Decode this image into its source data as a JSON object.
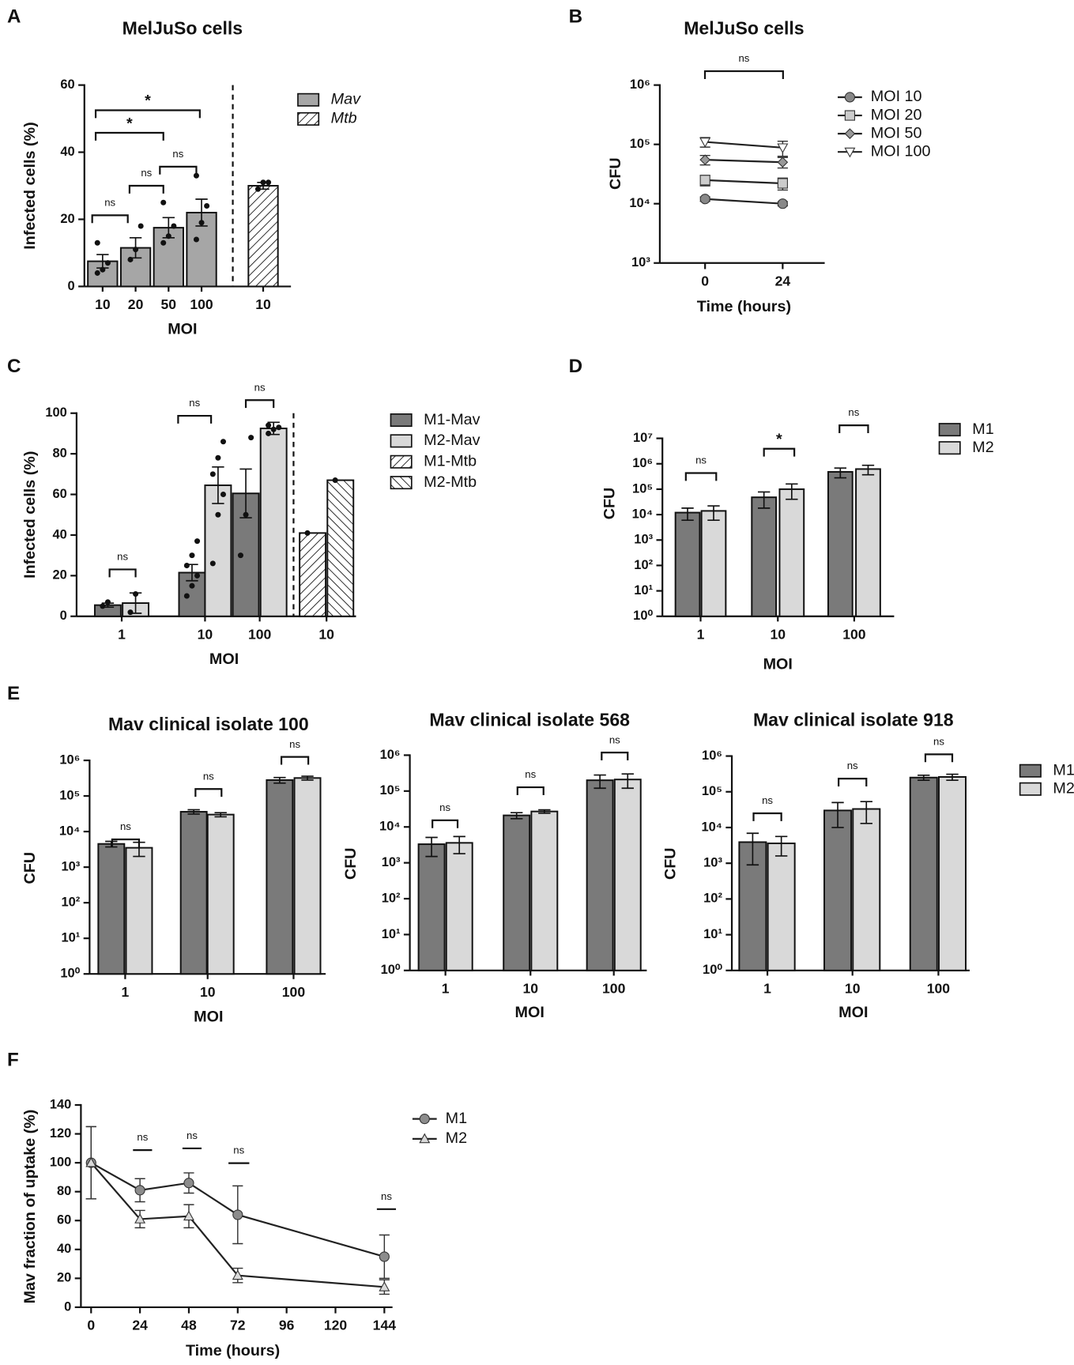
{
  "chart_data": [
    {
      "type": "bar",
      "panel": "A",
      "title": "MelJuSo cells",
      "ylabel": "Infected cells (%)",
      "xlabel": "MOI",
      "categories": [
        "10",
        "20",
        "50",
        "100",
        "10"
      ],
      "series": [
        {
          "name": "Mav",
          "color": "#a6a6a6",
          "values": [
            7.5,
            11.5,
            17.5,
            22,
            null
          ],
          "errors": [
            2,
            3,
            3,
            4,
            null
          ],
          "points": [
            [
              4,
              5,
              7,
              13
            ],
            [
              8,
              11,
              18
            ],
            [
              13,
              15,
              18,
              25
            ],
            [
              14,
              19,
              24,
              33
            ],
            null
          ]
        },
        {
          "name": "Mtb",
          "color": "#ffffff",
          "pattern": "hatch-right",
          "values": [
            null,
            null,
            null,
            null,
            30
          ],
          "errors": [
            null,
            null,
            null,
            null,
            1
          ],
          "points": [
            null,
            null,
            null,
            null,
            [
              29,
              31,
              31
            ]
          ]
        }
      ],
      "ylim": [
        0,
        60
      ],
      "yticks": [
        0,
        20,
        40,
        60
      ],
      "log": false,
      "legend": true,
      "annotations": [
        "ns",
        "ns",
        "ns",
        "*",
        "*"
      ]
    },
    {
      "type": "line",
      "panel": "B",
      "title": "MelJuSo cells",
      "ylabel": "CFU",
      "xlabel": "Time (hours)",
      "x": [
        0,
        24
      ],
      "xlim": [
        -14,
        37
      ],
      "xticks": [
        0,
        24
      ],
      "series": [
        {
          "name": "MOI 10",
          "color": "#888888",
          "marker": "circle",
          "values": [
            12000,
            10000
          ],
          "errors": [
            1000,
            800
          ]
        },
        {
          "name": "MOI 20",
          "color": "#cccccc",
          "marker": "square",
          "values": [
            25000,
            22000
          ],
          "errors": [
            5000,
            5000
          ]
        },
        {
          "name": "MOI 50",
          "color": "#999999",
          "marker": "diamond",
          "values": [
            55000,
            50000
          ],
          "errors": [
            10000,
            10000
          ]
        },
        {
          "name": "MOI 100",
          "color": "#ffffff",
          "marker": "triangle-down",
          "values": [
            110000,
            88000
          ],
          "errors": [
            20000,
            25000
          ]
        }
      ],
      "ylim": [
        1000,
        1000000
      ],
      "yticks": [
        {
          "value": 1000,
          "label": "10³"
        },
        {
          "value": 10000,
          "label": "10⁴"
        },
        {
          "value": 100000,
          "label": "10⁵"
        },
        {
          "value": 1000000,
          "label": "10⁶"
        }
      ],
      "log": true,
      "legend": true,
      "annotations": [
        "ns"
      ]
    },
    {
      "type": "bar",
      "panel": "C",
      "ylabel": "Infected cells (%)",
      "xlabel": "MOI",
      "categories": [
        "1",
        "10",
        "100",
        "10"
      ],
      "series": [
        {
          "name": "M1-Mav",
          "color": "#7a7a7a",
          "values": [
            5.5,
            21.5,
            60.5,
            null
          ],
          "errors": [
            1,
            4,
            12,
            null
          ],
          "points": [
            [
              5,
              7
            ],
            [
              10,
              15,
              20,
              25,
              30,
              37
            ],
            [
              30,
              50,
              88
            ],
            null
          ]
        },
        {
          "name": "M2-Mav",
          "color": "#d9d9d9",
          "values": [
            6.5,
            64.5,
            92.5,
            null
          ],
          "errors": [
            5,
            9,
            3,
            null
          ],
          "points": [
            [
              2,
              11
            ],
            [
              26,
              50,
              60,
              70,
              78,
              86
            ],
            [
              90,
              92,
              93,
              94
            ],
            null
          ]
        },
        {
          "name": "M1-Mtb",
          "color": "#ffffff",
          "pattern": "hatch-right",
          "values": [
            null,
            null,
            null,
            41
          ],
          "errors": [
            null,
            null,
            null,
            null
          ],
          "points": [
            null,
            null,
            null,
            [
              41
            ]
          ]
        },
        {
          "name": "M2-Mtb",
          "color": "#ffffff",
          "pattern": "hatch-left",
          "values": [
            null,
            null,
            null,
            67
          ],
          "errors": [
            null,
            null,
            null,
            null
          ],
          "points": [
            null,
            null,
            null,
            [
              67
            ]
          ]
        }
      ],
      "ylim": [
        0,
        100
      ],
      "yticks": [
        0,
        20,
        40,
        60,
        80,
        100
      ],
      "log": false,
      "legend": true,
      "annotations": [
        "ns",
        "ns",
        "ns"
      ]
    },
    {
      "type": "bar",
      "panel": "D",
      "ylabel": "CFU",
      "xlabel": "MOI",
      "categories": [
        "1",
        "10",
        "100"
      ],
      "series": [
        {
          "name": "M1",
          "color": "#7a7a7a",
          "values": [
            12000,
            48000,
            480000
          ],
          "errors": [
            6000,
            30000,
            200000
          ]
        },
        {
          "name": "M2",
          "color": "#d9d9d9",
          "values": [
            14000,
            100000,
            620000
          ],
          "errors": [
            8000,
            60000,
            250000
          ]
        }
      ],
      "ylim": [
        1,
        10000000
      ],
      "yticks": [
        {
          "value": 1,
          "label": "10⁰"
        },
        {
          "value": 10,
          "label": "10¹"
        },
        {
          "value": 100,
          "label": "10²"
        },
        {
          "value": 1000,
          "label": "10³"
        },
        {
          "value": 10000,
          "label": "10⁴"
        },
        {
          "value": 100000,
          "label": "10⁵"
        },
        {
          "value": 1000000,
          "label": "10⁶"
        },
        {
          "value": 10000000,
          "label": "10⁷"
        }
      ],
      "log": true,
      "legend": true,
      "annotations": [
        "ns",
        "*",
        "ns"
      ]
    },
    {
      "type": "bar",
      "panel": "E",
      "title": "Mav clinical isolate 100",
      "ylabel": "CFU",
      "xlabel": "MOI",
      "categories": [
        "1",
        "10",
        "100"
      ],
      "series": [
        {
          "name": "M1",
          "color": "#7a7a7a",
          "values": [
            4500,
            36000,
            280000
          ],
          "errors": [
            800,
            5000,
            50000
          ]
        },
        {
          "name": "M2",
          "color": "#d9d9d9",
          "values": [
            3500,
            30000,
            320000
          ],
          "errors": [
            1500,
            4000,
            40000
          ]
        }
      ],
      "ylim": [
        1,
        1000000
      ],
      "yticks": [
        {
          "value": 1,
          "label": "10⁰"
        },
        {
          "value": 10,
          "label": "10¹"
        },
        {
          "value": 100,
          "label": "10²"
        },
        {
          "value": 1000,
          "label": "10³"
        },
        {
          "value": 10000,
          "label": "10⁴"
        },
        {
          "value": 100000,
          "label": "10⁵"
        },
        {
          "value": 1000000,
          "label": "10⁶"
        }
      ],
      "log": true,
      "legend": false,
      "annotations": [
        "ns",
        "ns",
        "ns"
      ]
    },
    {
      "type": "bar",
      "title": "Mav clinical isolate 568",
      "ylabel": "CFU",
      "xlabel": "MOI",
      "categories": [
        "1",
        "10",
        "100"
      ],
      "series": [
        {
          "name": "M1",
          "color": "#7a7a7a",
          "values": [
            3300,
            21000,
            200000
          ],
          "errors": [
            1800,
            4000,
            80000
          ]
        },
        {
          "name": "M2",
          "color": "#d9d9d9",
          "values": [
            3600,
            27000,
            210000
          ],
          "errors": [
            1800,
            3000,
            90000
          ]
        }
      ],
      "ylim": [
        1,
        1000000
      ],
      "yticks": [
        {
          "value": 1,
          "label": "10⁰"
        },
        {
          "value": 10,
          "label": "10¹"
        },
        {
          "value": 100,
          "label": "10²"
        },
        {
          "value": 1000,
          "label": "10³"
        },
        {
          "value": 10000,
          "label": "10⁴"
        },
        {
          "value": 100000,
          "label": "10⁵"
        },
        {
          "value": 1000000,
          "label": "10⁶"
        }
      ],
      "log": true,
      "legend": false,
      "annotations": [
        "ns",
        "ns",
        "ns"
      ]
    },
    {
      "type": "bar",
      "title": "Mav clinical isolate 918",
      "ylabel": "CFU",
      "xlabel": "MOI",
      "categories": [
        "1",
        "10",
        "100"
      ],
      "series": [
        {
          "name": "M1",
          "color": "#7a7a7a",
          "values": [
            3900,
            30000,
            250000
          ],
          "errors": [
            3000,
            20000,
            40000
          ]
        },
        {
          "name": "M2",
          "color": "#d9d9d9",
          "values": [
            3600,
            33000,
            260000
          ],
          "errors": [
            2000,
            20000,
            50000
          ]
        }
      ],
      "ylim": [
        1,
        1000000
      ],
      "yticks": [
        {
          "value": 1,
          "label": "10⁰"
        },
        {
          "value": 10,
          "label": "10¹"
        },
        {
          "value": 100,
          "label": "10²"
        },
        {
          "value": 1000,
          "label": "10³"
        },
        {
          "value": 10000,
          "label": "10⁴"
        },
        {
          "value": 100000,
          "label": "10⁵"
        },
        {
          "value": 1000000,
          "label": "10⁶"
        }
      ],
      "log": true,
      "legend": true,
      "annotations": [
        "ns",
        "ns",
        "ns"
      ]
    },
    {
      "type": "line",
      "panel": "F",
      "ylabel": "Mav fraction of uptake (%)",
      "xlabel": "Time (hours)",
      "x": [
        0,
        24,
        48,
        72,
        144
      ],
      "xlim": [
        -5,
        148
      ],
      "xticks": [
        0,
        24,
        48,
        72,
        96,
        120,
        144
      ],
      "series": [
        {
          "name": "M1",
          "color": "#8c8c8c",
          "marker": "circle",
          "values": [
            100,
            81,
            86,
            64,
            35
          ],
          "errors": [
            25,
            8,
            7,
            20,
            15
          ]
        },
        {
          "name": "M2",
          "color": "#d9d9d9",
          "marker": "triangle",
          "values": [
            100,
            61,
            63,
            22,
            14
          ],
          "errors": [
            25,
            6,
            8,
            5,
            5
          ]
        }
      ],
      "ylim": [
        0,
        140
      ],
      "yticks": [
        0,
        20,
        40,
        60,
        80,
        100,
        120,
        140
      ],
      "log": false,
      "legend": true,
      "annotations": [
        "ns",
        "ns",
        "ns",
        "ns"
      ]
    }
  ]
}
